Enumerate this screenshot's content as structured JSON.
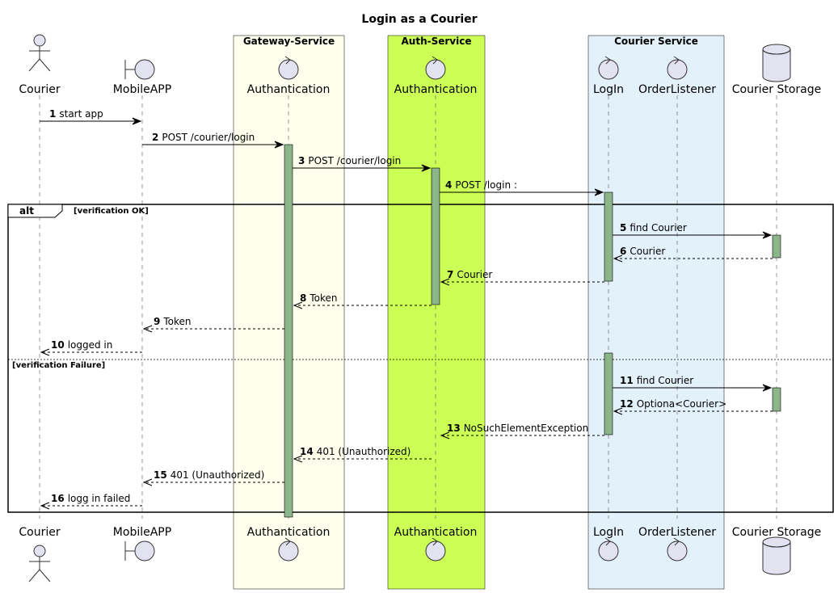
{
  "title": "Login as a Courier",
  "colors": {
    "gateway_box": "#FFFFEE",
    "auth_box": "#CCFF55",
    "courier_box": "#E3F1FB",
    "activation": "#8DB58A",
    "participant_fill": "#E2E2F0"
  },
  "boxes": [
    {
      "label": "Gateway-Service"
    },
    {
      "label": "Auth-Service"
    },
    {
      "label": "Courier Service"
    }
  ],
  "participants": [
    {
      "label": "Courier",
      "icon": "actor-icon"
    },
    {
      "label": "MobileAPP",
      "icon": "boundary-icon"
    },
    {
      "label": "Authantication",
      "icon": "control-icon"
    },
    {
      "label": "Authantication",
      "icon": "control-icon"
    },
    {
      "label": "LogIn",
      "icon": "control-icon"
    },
    {
      "label": "OrderListener",
      "icon": "control-icon"
    },
    {
      "label": "Courier Storage",
      "icon": "database-icon"
    }
  ],
  "messages": [
    {
      "num": "1",
      "text": "start app",
      "from": 0,
      "to": 1,
      "dashed": false
    },
    {
      "num": "2",
      "text": "POST /courier/login",
      "from": 1,
      "to": 2,
      "dashed": false
    },
    {
      "num": "3",
      "text": "POST /courier/login",
      "from": 2,
      "to": 3,
      "dashed": false
    },
    {
      "num": "4",
      "text": "POST /login :",
      "from": 3,
      "to": 4,
      "dashed": false
    },
    {
      "num": "5",
      "text": "find Courier",
      "from": 4,
      "to": 6,
      "dashed": false
    },
    {
      "num": "6",
      "text": "Courier",
      "from": 6,
      "to": 4,
      "dashed": true
    },
    {
      "num": "7",
      "text": "Courier",
      "from": 4,
      "to": 3,
      "dashed": true
    },
    {
      "num": "8",
      "text": "Token",
      "from": 3,
      "to": 2,
      "dashed": true
    },
    {
      "num": "9",
      "text": "Token",
      "from": 2,
      "to": 1,
      "dashed": true
    },
    {
      "num": "10",
      "text": "logged in",
      "from": 1,
      "to": 0,
      "dashed": true
    },
    {
      "num": "11",
      "text": "find Courier",
      "from": 4,
      "to": 6,
      "dashed": false
    },
    {
      "num": "12",
      "text": "Optiona<Courier>",
      "from": 6,
      "to": 4,
      "dashed": true
    },
    {
      "num": "13",
      "text": "NoSuchElementException",
      "from": 4,
      "to": 3,
      "dashed": true
    },
    {
      "num": "14",
      "text": "401 (Unauthorized)",
      "from": 3,
      "to": 2,
      "dashed": true
    },
    {
      "num": "15",
      "text": "401 (Unauthorized)",
      "from": 2,
      "to": 1,
      "dashed": true
    },
    {
      "num": "16",
      "text": "logg in failed",
      "from": 1,
      "to": 0,
      "dashed": true
    }
  ],
  "alt_fragment": {
    "keyword": "alt",
    "guard1": "[verification OK]",
    "guard2": "[verification Failure]"
  }
}
